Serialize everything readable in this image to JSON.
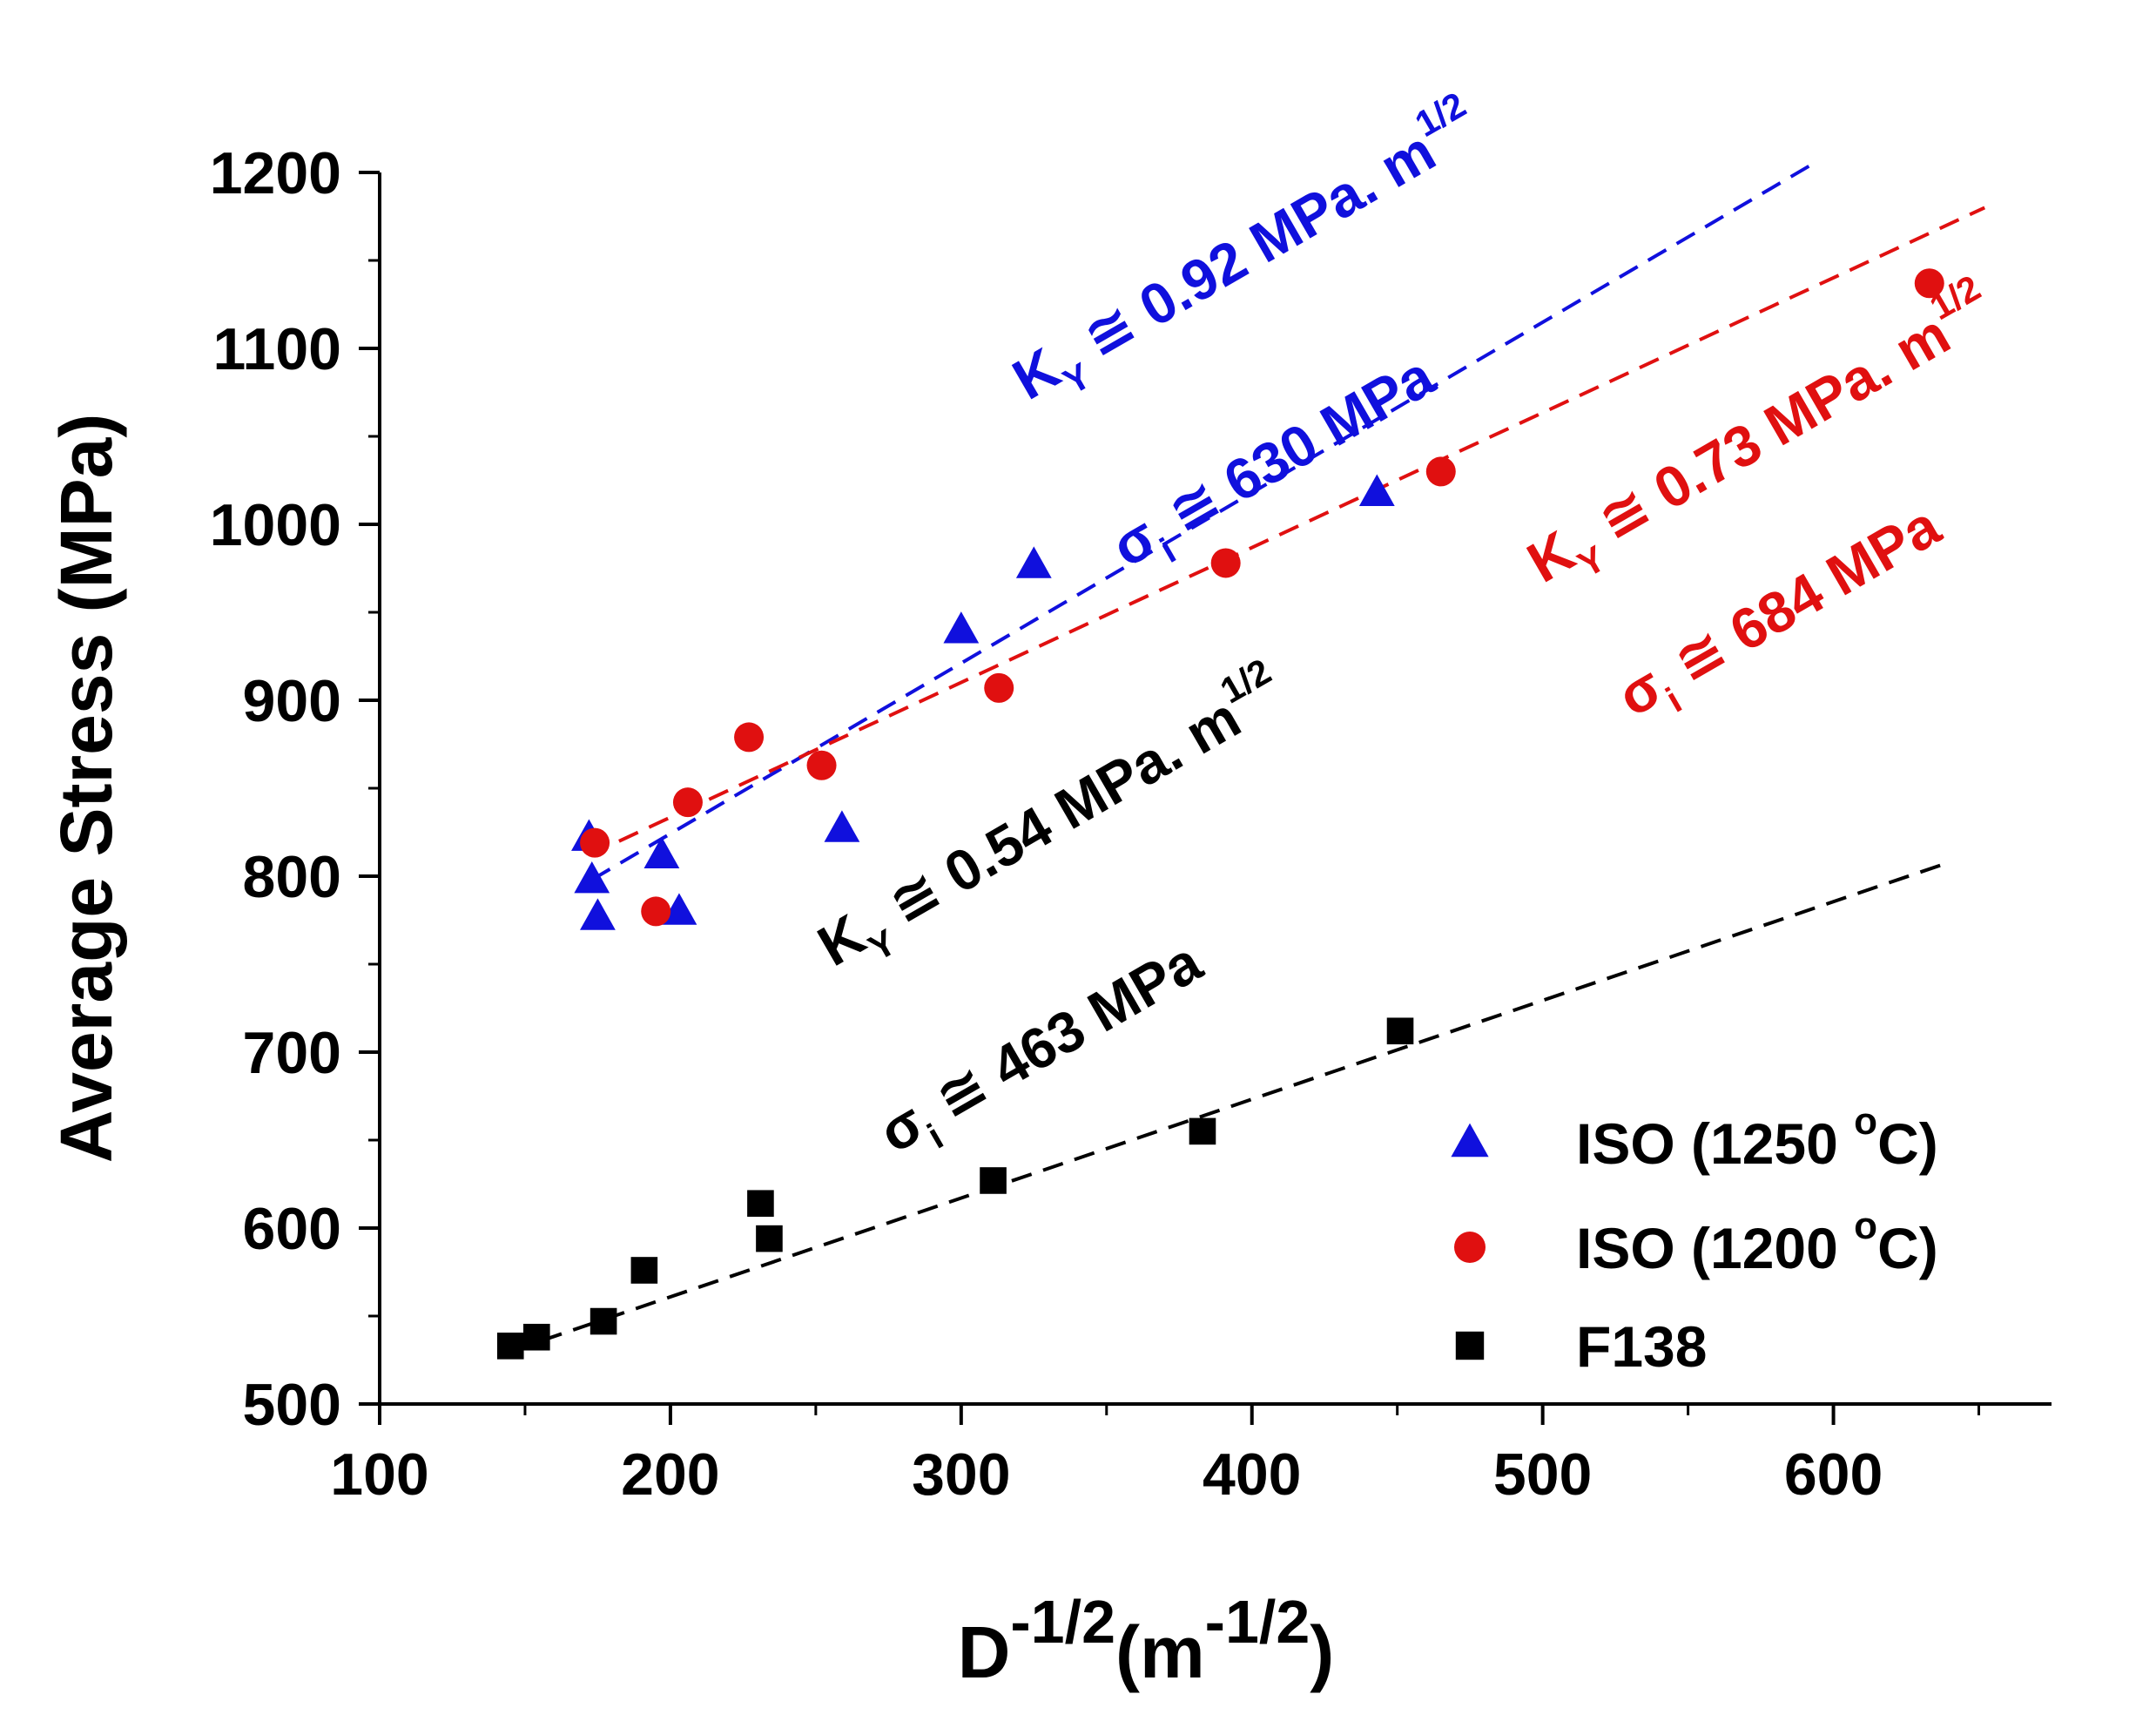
{
  "chart_data": {
    "type": "scatter",
    "ylabel": "Average Stress (MPa)",
    "xlabel": {
      "base": "D",
      "exp": "-1/2",
      "unit_open": "(m",
      "unit_exp": "-1/2",
      "unit_close": ")"
    },
    "xlim": [
      100,
      675
    ],
    "ylim": [
      500,
      1200
    ],
    "x_ticks": [
      100,
      200,
      300,
      400,
      500,
      600
    ],
    "x_tick_labels": [
      "100",
      "200",
      "300",
      "400",
      "500",
      "600"
    ],
    "y_ticks": [
      500,
      600,
      700,
      800,
      900,
      1000,
      1100,
      1200
    ],
    "y_tick_labels": [
      "500",
      "600",
      "700",
      "800",
      "900",
      "1000",
      "1100",
      "1200"
    ],
    "legend_position": "bottom-right",
    "series": [
      {
        "name": "ISO (1250 °C)",
        "label_main": "ISO (1250 ",
        "label_sup": "o",
        "label_end": "C)",
        "marker": "triangle",
        "color": "#1010dd",
        "points": [
          [
            172,
            822
          ],
          [
            173,
            798
          ],
          [
            175,
            777
          ],
          [
            197,
            812
          ],
          [
            203,
            780
          ],
          [
            259,
            827
          ],
          [
            300,
            940
          ],
          [
            325,
            977
          ],
          [
            443,
            1018
          ]
        ],
        "fit": {
          "x": [
            173,
            592
          ],
          "y": [
            798,
            1204
          ]
        }
      },
      {
        "name": "ISO (1200 °C)",
        "label_main": "ISO (1200 ",
        "label_sup": "o",
        "label_end": "C)",
        "marker": "circle",
        "color": "#e01010",
        "points": [
          [
            174,
            819
          ],
          [
            195,
            780
          ],
          [
            206,
            842
          ],
          [
            227,
            879
          ],
          [
            252,
            863
          ],
          [
            313,
            907
          ],
          [
            391,
            978
          ],
          [
            465,
            1030
          ],
          [
            633,
            1137
          ]
        ],
        "fit": {
          "x": [
            172,
            652
          ],
          "y": [
            812,
            1180
          ]
        }
      },
      {
        "name": "F138",
        "label_main": "F138",
        "label_sup": "",
        "label_end": "",
        "marker": "square",
        "color": "#000000",
        "points": [
          [
            145,
            533
          ],
          [
            154,
            538
          ],
          [
            177,
            547
          ],
          [
            191,
            576
          ],
          [
            231,
            614
          ],
          [
            234,
            594
          ],
          [
            311,
            627
          ],
          [
            383,
            655
          ],
          [
            451,
            712
          ]
        ],
        "fit": {
          "x": [
            145,
            640
          ],
          "y": [
            530,
            808
          ]
        }
      }
    ],
    "annotations": [
      {
        "color": "#1010dd",
        "angle": -30,
        "sym": "K",
        "sub": "Y",
        "rest": " ≅ 0.92 MPa. m",
        "sup": "1/2",
        "at": [
          323,
          1070
        ]
      },
      {
        "color": "#1010dd",
        "angle": -30,
        "sym": "σ",
        "sub": "i",
        "rest": " ≅ 630 MPa",
        "sup": "",
        "at": [
          357,
          975
        ]
      },
      {
        "color": "#e01010",
        "angle": -30,
        "sym": "K",
        "sub": "Y",
        "rest": " ≅ 0.73 MPa. m",
        "sup": "1/2",
        "at": [
          500,
          966
        ]
      },
      {
        "color": "#e01010",
        "angle": -30,
        "sym": "σ",
        "sub": "i",
        "rest": " ≅ 684 MPa",
        "sup": "",
        "at": [
          531,
          890
        ]
      },
      {
        "color": "#000000",
        "angle": -30,
        "sym": "K",
        "sub": "Y",
        "rest": " ≅ 0.54 MPa. m",
        "sup": "1/2",
        "at": [
          256,
          748
        ]
      },
      {
        "color": "#000000",
        "angle": -30,
        "sym": "σ",
        "sub": "i",
        "rest": " ≅ 463 MPa",
        "sup": "",
        "at": [
          277,
          642
        ]
      }
    ]
  }
}
